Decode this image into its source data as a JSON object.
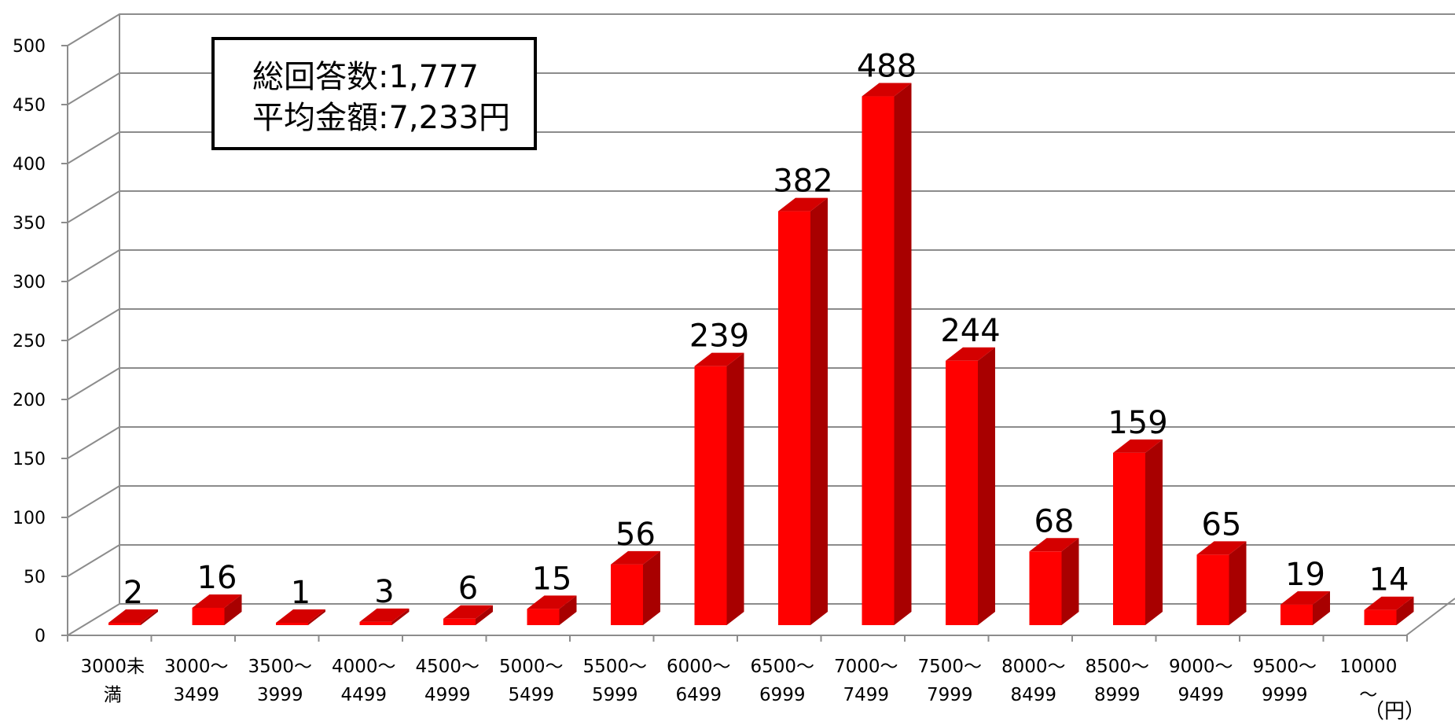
{
  "chart_data": {
    "type": "bar",
    "style": "3d",
    "title": "",
    "xlabel": "",
    "ylabel": "",
    "unit_label": "（円）",
    "categories": [
      [
        "3000未",
        "満"
      ],
      [
        "3000～",
        "3499"
      ],
      [
        "3500～",
        "3999"
      ],
      [
        "4000～",
        "4499"
      ],
      [
        "4500～",
        "4999"
      ],
      [
        "5000～",
        "5499"
      ],
      [
        "5500～",
        "5999"
      ],
      [
        "6000～",
        "6499"
      ],
      [
        "6500～",
        "6999"
      ],
      [
        "7000～",
        "7499"
      ],
      [
        "7500～",
        "7999"
      ],
      [
        "8000～",
        "8499"
      ],
      [
        "8500～",
        "8999"
      ],
      [
        "9000～",
        "9499"
      ],
      [
        "9500～",
        "9999"
      ],
      [
        "10000",
        "～"
      ]
    ],
    "values": [
      2,
      16,
      1,
      3,
      6,
      15,
      56,
      239,
      382,
      488,
      244,
      68,
      159,
      65,
      19,
      14
    ],
    "ylim": [
      0,
      500
    ],
    "yticks": [
      "0",
      "50",
      "100",
      "150",
      "200",
      "250",
      "300",
      "350",
      "400",
      "450",
      "500"
    ],
    "grid": true,
    "legend": "none",
    "colors": {
      "bar_front": "#ff0000",
      "bar_side": "#a80000",
      "bar_top": "#d40000",
      "grid": "#8c8c8c"
    },
    "annotation": {
      "total_label": "総回答数:1,777",
      "average_label": "平均金額:7,233円"
    }
  }
}
